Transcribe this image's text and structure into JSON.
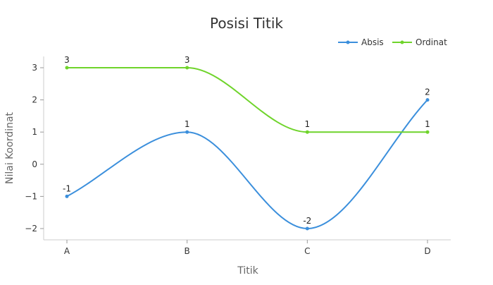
{
  "chart_data": {
    "type": "line",
    "title": "Posisi Titik",
    "xlabel": "Titik",
    "ylabel": "Nilai Koordinat",
    "categories": [
      "A",
      "B",
      "C",
      "D"
    ],
    "ylim": [
      -2,
      3
    ],
    "yticks": [
      3,
      2,
      1,
      0,
      -1,
      -2
    ],
    "ytick_labels": [
      "3",
      "2",
      "1",
      "0",
      "−1",
      "−2"
    ],
    "grid": false,
    "smooth": true,
    "legend_position": "top-right",
    "series": [
      {
        "name": "Absis",
        "color": "#3b8fdc",
        "values": [
          -1,
          1,
          -2,
          2
        ],
        "labels": [
          "-1",
          "1",
          "-2",
          "2"
        ]
      },
      {
        "name": "Ordinat",
        "color": "#6fd42b",
        "values": [
          3,
          3,
          1,
          1
        ],
        "labels": [
          "3",
          "3",
          "1",
          "1"
        ]
      }
    ]
  }
}
